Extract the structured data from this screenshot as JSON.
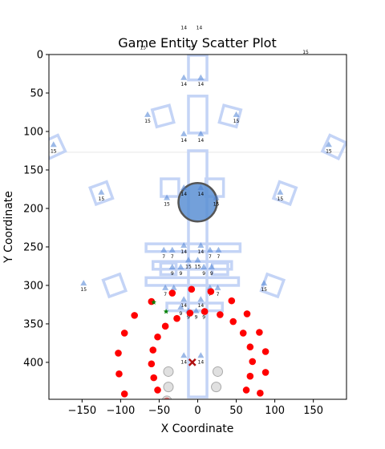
{
  "chart_data": {
    "type": "scatter",
    "title": "Game Entity Scatter Plot",
    "xlabel": "X Coordinate",
    "ylabel": "Y Coordinate",
    "xlim": [
      -193,
      193
    ],
    "ylim": [
      448,
      0
    ],
    "y_inverted": true,
    "grid": false,
    "legend": "none",
    "x_ticks": [
      -150,
      -100,
      -50,
      0,
      50,
      100,
      150
    ],
    "y_ticks": [
      0,
      50,
      100,
      150,
      200,
      250,
      300,
      350,
      400
    ],
    "colors": {
      "blue": "#4a7fd4",
      "light_blue": "#c4d4f6",
      "red": "#ff0000",
      "green": "#008000",
      "gray": "#cccccc",
      "dark_red": "#b01010",
      "horizon": "#e6e6e6"
    },
    "horizon_line_y": 127,
    "squares": [
      {
        "x": -45,
        "y": 80,
        "size": 22,
        "angle": -15
      },
      {
        "x": 42,
        "y": 80,
        "size": 22,
        "angle": 15
      },
      {
        "x": -187,
        "y": 120,
        "size": 22,
        "angle": -25
      },
      {
        "x": 177,
        "y": 120,
        "size": 22,
        "angle": 25
      },
      {
        "x": -125,
        "y": 180,
        "size": 22,
        "angle": -20
      },
      {
        "x": 113,
        "y": 180,
        "size": 22,
        "angle": 20
      },
      {
        "x": -108,
        "y": 300,
        "size": 22,
        "angle": -20
      },
      {
        "x": 97,
        "y": 300,
        "size": 22,
        "angle": 20
      },
      {
        "x": -36,
        "y": 173,
        "size": 22,
        "angle": 0
      },
      {
        "x": 22,
        "y": 173,
        "size": 22,
        "angle": 0
      }
    ],
    "rects": [
      {
        "x": -12,
        "y": 1,
        "w": 24,
        "h": 32
      },
      {
        "x": -12,
        "y": 54,
        "w": 24,
        "h": 48
      },
      {
        "x": -12,
        "y": 125,
        "w": 24,
        "h": 320
      },
      {
        "x": -67,
        "y": 246,
        "w": 122,
        "h": 10
      },
      {
        "x": -58,
        "y": 269,
        "w": 102,
        "h": 10
      },
      {
        "x": -67,
        "y": 290,
        "w": 120,
        "h": 10
      },
      {
        "x": -40,
        "y": 323,
        "w": 72,
        "h": 10
      },
      {
        "x": -48,
        "y": 271,
        "w": 20,
        "h": 15
      },
      {
        "x": 19,
        "y": 271,
        "w": 20,
        "h": 15
      }
    ],
    "circle": {
      "x": 0,
      "y": 192,
      "r": 24
    },
    "blue_triangles": [
      {
        "x": -18,
        "y": 30,
        "label": "14"
      },
      {
        "x": 4,
        "y": 30,
        "label": "14"
      },
      {
        "x": -65,
        "y": 78,
        "label": "15"
      },
      {
        "x": 50,
        "y": 78,
        "label": "15"
      },
      {
        "x": -18,
        "y": 103,
        "label": "14"
      },
      {
        "x": 4,
        "y": 103,
        "label": "14"
      },
      {
        "x": -187,
        "y": 117,
        "label": "15"
      },
      {
        "x": 170,
        "y": 117,
        "label": "15"
      },
      {
        "x": -125,
        "y": 179,
        "label": "15"
      },
      {
        "x": 107,
        "y": 179,
        "label": "15"
      },
      {
        "x": -18,
        "y": 173,
        "label": "14"
      },
      {
        "x": 4,
        "y": 173,
        "label": "14"
      },
      {
        "x": -40,
        "y": 186,
        "label": "15"
      },
      {
        "x": 24,
        "y": 186,
        "label": "15"
      },
      {
        "x": -44,
        "y": 254,
        "label": "7"
      },
      {
        "x": -33,
        "y": 254,
        "label": "7"
      },
      {
        "x": -18,
        "y": 248,
        "label": "14"
      },
      {
        "x": 4,
        "y": 248,
        "label": "14"
      },
      {
        "x": 16,
        "y": 254,
        "label": "7"
      },
      {
        "x": 27,
        "y": 254,
        "label": "7"
      },
      {
        "x": -33,
        "y": 276,
        "label": "9"
      },
      {
        "x": -22,
        "y": 276,
        "label": "9"
      },
      {
        "x": -12,
        "y": 267,
        "label": "15"
      },
      {
        "x": 0,
        "y": 267,
        "label": "15"
      },
      {
        "x": 8,
        "y": 276,
        "label": "9"
      },
      {
        "x": 18,
        "y": 276,
        "label": "9"
      },
      {
        "x": -148,
        "y": 297,
        "label": "15"
      },
      {
        "x": 86,
        "y": 297,
        "label": "15"
      },
      {
        "x": -42,
        "y": 303,
        "label": "7"
      },
      {
        "x": -31,
        "y": 303,
        "label": "7"
      },
      {
        "x": 16,
        "y": 303,
        "label": "7"
      },
      {
        "x": 26,
        "y": 303,
        "label": "7"
      },
      {
        "x": -18,
        "y": 318,
        "label": "14"
      },
      {
        "x": 4,
        "y": 318,
        "label": "14"
      },
      {
        "x": -22,
        "y": 328,
        "label": "9"
      },
      {
        "x": -12,
        "y": 333,
        "label": "9"
      },
      {
        "x": -2,
        "y": 333,
        "label": "9"
      },
      {
        "x": 8,
        "y": 333,
        "label": "9"
      },
      {
        "x": -18,
        "y": 391,
        "label": "14"
      },
      {
        "x": 4,
        "y": 391,
        "label": "14"
      }
    ],
    "standalone_labels": [
      {
        "x": -18,
        "y": -33,
        "label": "14"
      },
      {
        "x": 2,
        "y": -33,
        "label": "14"
      },
      {
        "x": -71,
        "y": -7,
        "label": "15"
      },
      {
        "x": -8,
        "y": -7,
        "label": "15"
      },
      {
        "x": 140,
        "y": -1,
        "label": "15"
      }
    ],
    "red_points": [
      {
        "x": -60,
        "y": 321
      },
      {
        "x": -82,
        "y": 339
      },
      {
        "x": -95,
        "y": 362
      },
      {
        "x": -103,
        "y": 388
      },
      {
        "x": -102,
        "y": 415
      },
      {
        "x": -95,
        "y": 441
      },
      {
        "x": -60,
        "y": 402
      },
      {
        "x": -58,
        "y": 384
      },
      {
        "x": -52,
        "y": 367
      },
      {
        "x": -42,
        "y": 353
      },
      {
        "x": -27,
        "y": 343
      },
      {
        "x": -10,
        "y": 336
      },
      {
        "x": -8,
        "y": 305
      },
      {
        "x": -33,
        "y": 310
      },
      {
        "x": -57,
        "y": 420
      },
      {
        "x": -52,
        "y": 436
      },
      {
        "x": -40,
        "y": 450
      },
      {
        "x": 9,
        "y": 334
      },
      {
        "x": 17,
        "y": 308
      },
      {
        "x": 29,
        "y": 338
      },
      {
        "x": 44,
        "y": 320
      },
      {
        "x": 46,
        "y": 347
      },
      {
        "x": 59,
        "y": 362
      },
      {
        "x": 64,
        "y": 337
      },
      {
        "x": 68,
        "y": 380
      },
      {
        "x": 71,
        "y": 399
      },
      {
        "x": 68,
        "y": 418
      },
      {
        "x": 63,
        "y": 436
      },
      {
        "x": 80,
        "y": 361
      },
      {
        "x": 88,
        "y": 386
      },
      {
        "x": 88,
        "y": 413
      },
      {
        "x": 81,
        "y": 440
      },
      {
        "x": 45,
        "y": 452
      }
    ],
    "gray_points": [
      {
        "x": -38,
        "y": 412
      },
      {
        "x": 26,
        "y": 412
      },
      {
        "x": -38,
        "y": 432
      },
      {
        "x": 24,
        "y": 432
      },
      {
        "x": -40,
        "y": 450
      }
    ],
    "green_stars": [
      {
        "x": -57,
        "y": 322
      },
      {
        "x": -41,
        "y": 334
      }
    ],
    "x_marker": {
      "x": -7,
      "y": 400
    }
  }
}
